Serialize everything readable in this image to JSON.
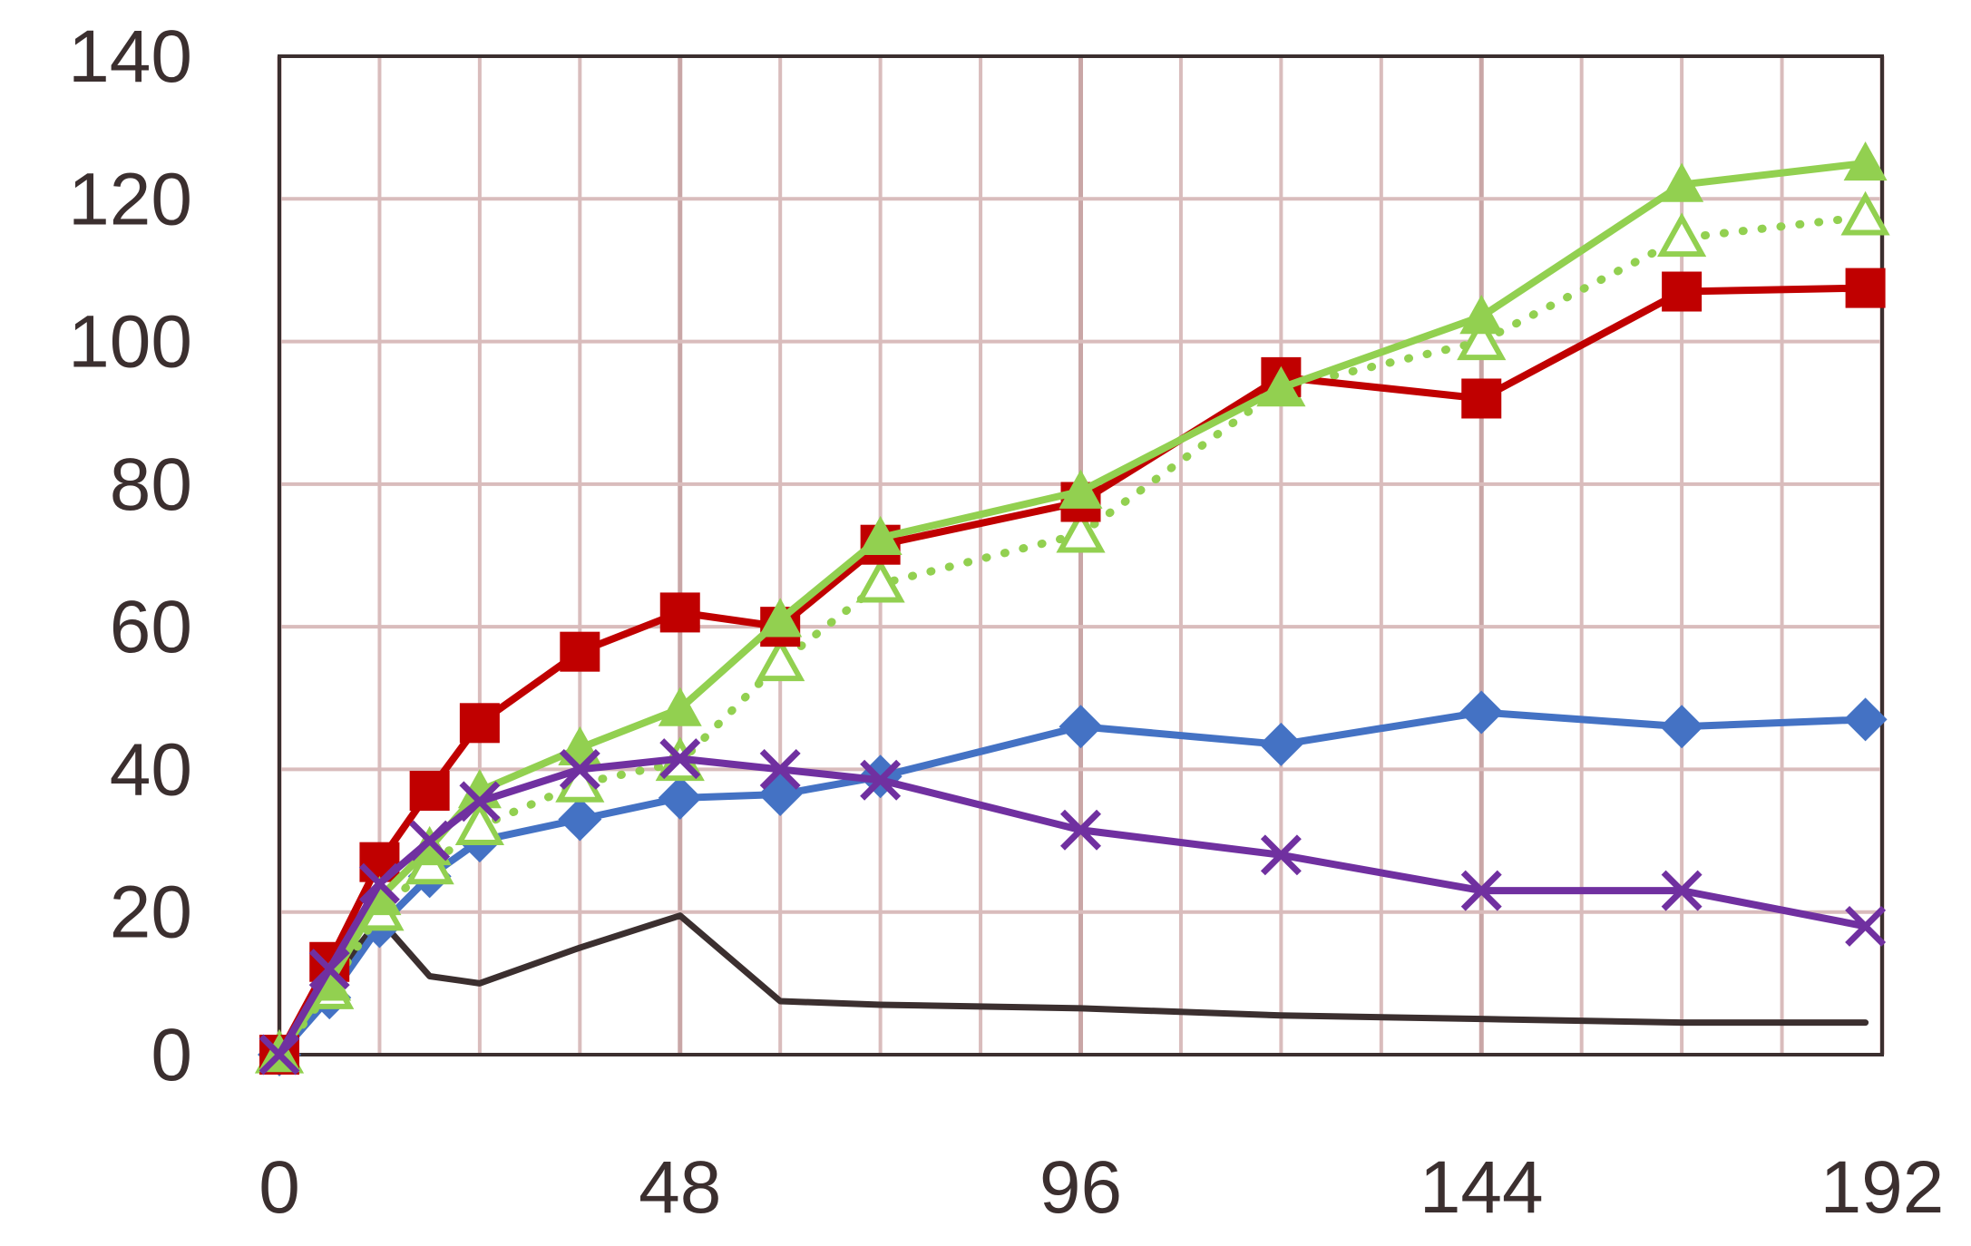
{
  "chart_data": {
    "type": "line",
    "title": "",
    "xlabel": "",
    "ylabel": "",
    "xlim": [
      0,
      192
    ],
    "ylim": [
      0,
      140
    ],
    "x_major_ticks": [
      0,
      48,
      96,
      144,
      192
    ],
    "x_tick_labels": [
      "0",
      "48",
      "96",
      "144",
      "192"
    ],
    "y_ticks": [
      0,
      20,
      40,
      60,
      80,
      100,
      120,
      140
    ],
    "y_tick_labels": [
      "0",
      "20",
      "40",
      "60",
      "80",
      "100",
      "120",
      "140"
    ],
    "x_minor_grid": [
      12,
      24,
      36,
      60,
      72,
      84,
      108,
      120,
      132,
      156,
      168,
      180
    ],
    "grid": true,
    "grid_color": "#d9bcbc",
    "frame_color": "#3b2f2f",
    "legend": "none",
    "series": [
      {
        "marker": "diamond",
        "line_style": "solid",
        "color": "#4472c4",
        "points": [
          [
            0,
            0
          ],
          [
            6,
            8
          ],
          [
            12,
            18
          ],
          [
            18,
            25
          ],
          [
            24,
            30
          ],
          [
            36,
            33
          ],
          [
            48,
            36
          ],
          [
            60,
            36.5
          ],
          [
            72,
            39
          ],
          [
            96,
            46
          ],
          [
            120,
            43.5
          ],
          [
            144,
            48
          ],
          [
            168,
            46
          ],
          [
            190,
            47
          ]
        ]
      },
      {
        "marker": "square",
        "line_style": "solid",
        "color": "#c00000",
        "points": [
          [
            0,
            0
          ],
          [
            6,
            13
          ],
          [
            12,
            27
          ],
          [
            18,
            37
          ],
          [
            24,
            46.5
          ],
          [
            36,
            56.5
          ],
          [
            48,
            62
          ],
          [
            60,
            60
          ],
          [
            72,
            71.5
          ],
          [
            96,
            77.5
          ],
          [
            120,
            95
          ],
          [
            144,
            92
          ],
          [
            168,
            107
          ],
          [
            190,
            107.5
          ]
        ]
      },
      {
        "marker": "triangle",
        "line_style": "solid",
        "color": "#92d050",
        "points": [
          [
            0,
            0
          ],
          [
            6,
            10
          ],
          [
            12,
            22
          ],
          [
            18,
            29
          ],
          [
            24,
            37
          ],
          [
            36,
            43
          ],
          [
            48,
            48.5
          ],
          [
            60,
            61
          ],
          [
            72,
            72.5
          ],
          [
            96,
            79
          ],
          [
            120,
            93.5
          ],
          [
            144,
            103.5
          ],
          [
            168,
            122
          ],
          [
            190,
            125
          ]
        ]
      },
      {
        "marker": "triangle-open",
        "line_style": "dotted",
        "color": "#92d050",
        "points": [
          [
            0,
            0
          ],
          [
            6,
            9
          ],
          [
            12,
            20
          ],
          [
            18,
            26.5
          ],
          [
            24,
            32
          ],
          [
            36,
            38
          ],
          [
            48,
            41
          ],
          [
            60,
            55
          ],
          [
            72,
            66
          ],
          [
            96,
            73
          ],
          [
            120,
            93.5
          ],
          [
            144,
            100
          ],
          [
            168,
            114.5
          ],
          [
            190,
            117.5
          ]
        ]
      },
      {
        "marker": "x",
        "line_style": "solid",
        "color": "#7030a0",
        "points": [
          [
            0,
            0
          ],
          [
            6,
            12
          ],
          [
            12,
            24
          ],
          [
            18,
            30
          ],
          [
            24,
            35.5
          ],
          [
            36,
            40
          ],
          [
            48,
            41.5
          ],
          [
            60,
            40
          ],
          [
            72,
            38.5
          ],
          [
            96,
            31.5
          ],
          [
            120,
            28
          ],
          [
            144,
            23
          ],
          [
            168,
            23
          ],
          [
            190,
            18
          ]
        ]
      },
      {
        "marker": "none",
        "line_style": "solid",
        "color": "#3b2f2f",
        "points": [
          [
            0,
            0
          ],
          [
            6,
            10
          ],
          [
            12,
            19
          ],
          [
            18,
            11
          ],
          [
            24,
            10
          ],
          [
            36,
            15
          ],
          [
            48,
            19.5
          ],
          [
            60,
            7.5
          ],
          [
            72,
            7
          ],
          [
            96,
            6.5
          ],
          [
            120,
            5.5
          ],
          [
            144,
            5
          ],
          [
            168,
            4.5
          ],
          [
            190,
            4.5
          ]
        ]
      }
    ]
  }
}
